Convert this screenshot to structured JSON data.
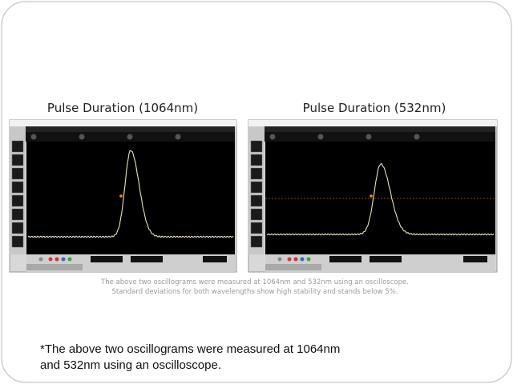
{
  "slide": {
    "panels": [
      {
        "title": "Pulse Duration (1064nm)"
      },
      {
        "title": "Pulse Duration (532nm)"
      }
    ],
    "caption": [
      "The above two oscillograms were measured at 1064nm and 532nm using an oscilloscope.",
      "Standard deviations for both wavelengths show high stability and stands below 5%."
    ],
    "footnote": [
      "*The above two oscillograms were measured at 1064nm",
      "and 532nm using an oscilloscope."
    ]
  }
}
